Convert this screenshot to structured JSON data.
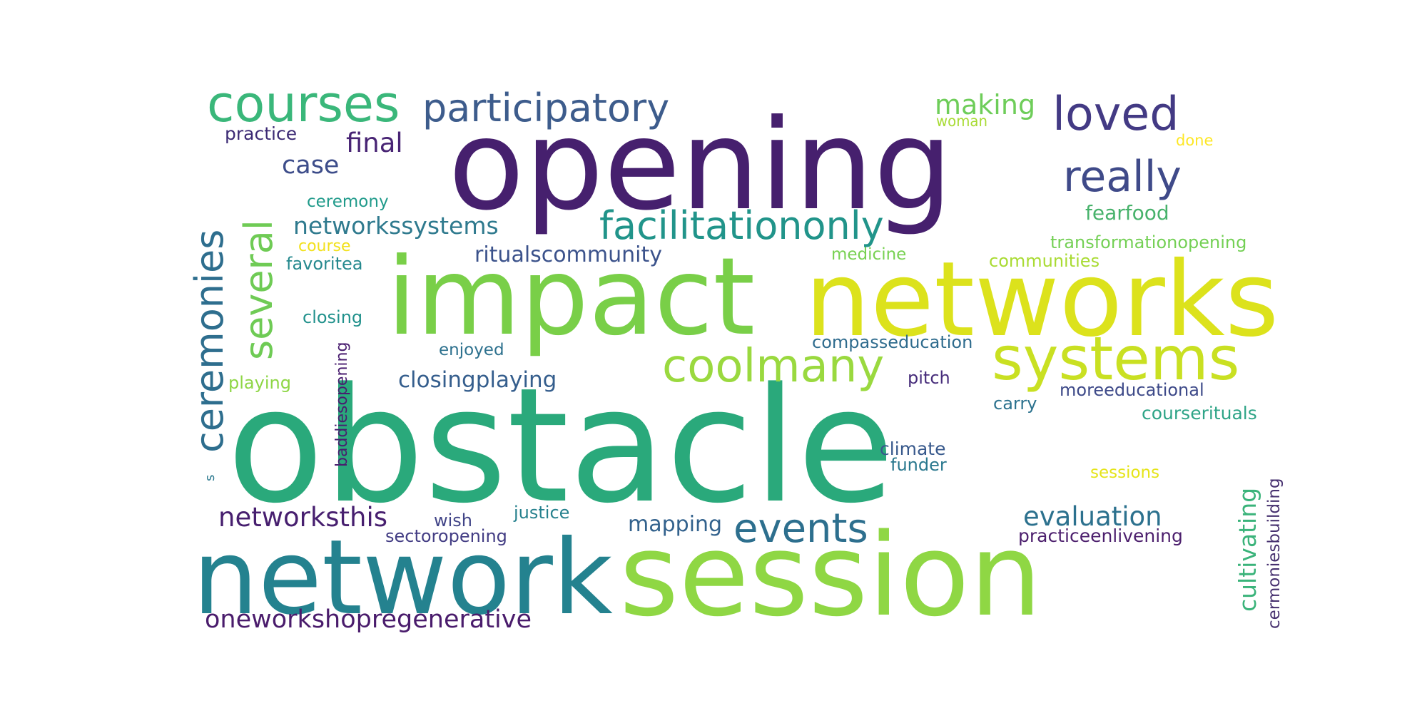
{
  "words": [
    {
      "text": "opening",
      "color": "#46206e"
    },
    {
      "text": "obstacle",
      "color": "#2aa97b"
    },
    {
      "text": "impact",
      "color": "#79cf48"
    },
    {
      "text": "networks",
      "color": "#dce21c"
    },
    {
      "text": "session",
      "color": "#8fd744"
    },
    {
      "text": "network",
      "color": "#24828f"
    },
    {
      "text": "systems",
      "color": "#c9e022"
    },
    {
      "text": "courses",
      "color": "#3ab77a"
    },
    {
      "text": "participatory",
      "color": "#3d5c8c"
    },
    {
      "text": "loved",
      "color": "#433a84"
    },
    {
      "text": "really",
      "color": "#3f4a89"
    },
    {
      "text": "facilitationonly",
      "color": "#21948a"
    },
    {
      "text": "ceremonies",
      "color": "#2e6e8e"
    },
    {
      "text": "several",
      "color": "#6fcb55"
    },
    {
      "text": "coolmany",
      "color": "#9ad93f"
    },
    {
      "text": "events",
      "color": "#2d6f8e"
    },
    {
      "text": "making",
      "color": "#6ecd59"
    },
    {
      "text": "final",
      "color": "#482474"
    },
    {
      "text": "case",
      "color": "#3d4d8a"
    },
    {
      "text": "networkssystems",
      "color": "#2f7a8e"
    },
    {
      "text": "ritualscommunity",
      "color": "#3b528b"
    },
    {
      "text": "closingplaying",
      "color": "#355e8d"
    },
    {
      "text": "evaluation",
      "color": "#2c718e"
    },
    {
      "text": "cultivating",
      "color": "#3ab37a"
    },
    {
      "text": "networksthis",
      "color": "#471f6f"
    },
    {
      "text": "mapping",
      "color": "#33628d"
    },
    {
      "text": "oneworkshopregenerative",
      "color": "#4a1c6c"
    },
    {
      "text": "fearfood",
      "color": "#47b26b"
    },
    {
      "text": "transformationopening",
      "color": "#74d055"
    },
    {
      "text": "communities",
      "color": "#a9db33"
    },
    {
      "text": "medicine",
      "color": "#78d152"
    },
    {
      "text": "compasseducation",
      "color": "#2f6c8e"
    },
    {
      "text": "moreeducational",
      "color": "#3e4a89"
    },
    {
      "text": "courserituals",
      "color": "#2ea487"
    },
    {
      "text": "cermoniesbuilding",
      "color": "#46306f"
    },
    {
      "text": "practiceenlivening",
      "color": "#4c1f6d"
    },
    {
      "text": "baddiesopening",
      "color": "#491d6f"
    },
    {
      "text": "practice",
      "color": "#3c2a74"
    },
    {
      "text": "ceremony",
      "color": "#1f9a8a"
    },
    {
      "text": "course",
      "color": "#f2e11d"
    },
    {
      "text": "favoritea",
      "color": "#25898e"
    },
    {
      "text": "closing",
      "color": "#21918c"
    },
    {
      "text": "enjoyed",
      "color": "#2d718e"
    },
    {
      "text": "playing",
      "color": "#8ed645"
    },
    {
      "text": "pitch",
      "color": "#472d7b"
    },
    {
      "text": "carry",
      "color": "#2c728e"
    },
    {
      "text": "climate",
      "color": "#38598c"
    },
    {
      "text": "funder",
      "color": "#2a788e"
    },
    {
      "text": "sessions",
      "color": "#e5e419"
    },
    {
      "text": "wish",
      "color": "#414487"
    },
    {
      "text": "justice",
      "color": "#26818e"
    },
    {
      "text": "sectoropening",
      "color": "#433d84"
    },
    {
      "text": "woman",
      "color": "#a8db34"
    },
    {
      "text": "done",
      "color": "#fde725"
    },
    {
      "text": "s",
      "color": "#2a788e"
    }
  ]
}
